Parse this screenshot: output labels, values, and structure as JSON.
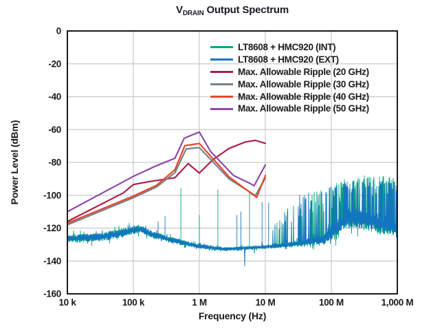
{
  "figure_title": {
    "prefix": "V",
    "subscript": "DRAIN",
    "rest": "Output Spectrum"
  },
  "chart_data": {
    "type": "line",
    "title": "V_DRAIN Output Spectrum",
    "xlabel": "Frequency (Hz)",
    "ylabel": "Power Level (dBm)",
    "x_scale": "log",
    "xlim_hz": [
      10000,
      1000000000
    ],
    "ylim": [
      -160,
      0
    ],
    "grid": true,
    "legend_position": "top-right",
    "axis_color": "#1a1a1a",
    "grid_color": "#c9c9c9",
    "title_color": "#1a1a24",
    "x_ticks": [
      {
        "log10": 4,
        "label": "10 k"
      },
      {
        "log10": 5,
        "label": "100 k"
      },
      {
        "log10": 6,
        "label": "1 M"
      },
      {
        "log10": 7,
        "label": "10 M"
      },
      {
        "log10": 8,
        "label": "100 M"
      },
      {
        "log10": 9,
        "label": "1,000 M"
      }
    ],
    "y_ticks": [
      {
        "value": 0,
        "label": "0"
      },
      {
        "value": -20,
        "label": "-20"
      },
      {
        "value": -40,
        "label": "-40"
      },
      {
        "value": -60,
        "label": "-60"
      },
      {
        "value": -80,
        "label": "-80"
      },
      {
        "value": -100,
        "label": "-100"
      },
      {
        "value": -120,
        "label": "-120"
      },
      {
        "value": -140,
        "label": "-140"
      },
      {
        "value": -160,
        "label": "-160"
      }
    ],
    "series": [
      {
        "name": "LT8608 + HMC920 (INT)",
        "color": "#00a87a",
        "kind": "noise",
        "seed": 7,
        "envelope": [
          [
            4.0,
            -126.5,
            2.8,
            null,
            0
          ],
          [
            4.6,
            -125.0,
            2.8,
            null,
            0
          ],
          [
            5.1,
            -120.3,
            2.6,
            null,
            0
          ],
          [
            5.3,
            -124.0,
            2.2,
            null,
            0
          ],
          [
            5.7,
            -128.5,
            1.8,
            null,
            0
          ],
          [
            6.0,
            -131.0,
            1.5,
            null,
            0
          ],
          [
            6.4,
            -132.8,
            1.2,
            null,
            0
          ],
          [
            7.0,
            -131.5,
            1.2,
            -126,
            0.04
          ],
          [
            7.25,
            -130.5,
            1.5,
            -113,
            0.1
          ],
          [
            7.5,
            -129.5,
            2.0,
            -102,
            0.25
          ],
          [
            7.9,
            -127.0,
            3.0,
            -95,
            0.45
          ],
          [
            8.05,
            -122.0,
            5.0,
            -93,
            0.5
          ],
          [
            8.2,
            -115.5,
            5.5,
            -90,
            0.55
          ],
          [
            8.5,
            -114.5,
            6.5,
            -88,
            0.55
          ],
          [
            8.75,
            -118.0,
            6.0,
            -87,
            0.5
          ],
          [
            9.0,
            -120.0,
            5.0,
            -90,
            0.5
          ]
        ],
        "spurs_log10_dbm": [
          [
            5.72,
            -95.5
          ],
          [
            6.0,
            -112.0
          ],
          [
            6.28,
            -96.5
          ],
          [
            6.76,
            -97.5
          ]
        ]
      },
      {
        "name": "LT8608 + HMC920 (EXT)",
        "color": "#1375bf",
        "kind": "noise",
        "seed": 13,
        "envelope": [
          [
            4.0,
            -126.5,
            2.4,
            null,
            0
          ],
          [
            4.6,
            -125.0,
            2.4,
            null,
            0
          ],
          [
            5.1,
            -120.5,
            2.3,
            null,
            0
          ],
          [
            5.3,
            -124.0,
            2.0,
            null,
            0
          ],
          [
            5.7,
            -128.5,
            1.6,
            null,
            0
          ],
          [
            6.0,
            -131.0,
            1.4,
            null,
            0
          ],
          [
            6.4,
            -132.8,
            1.1,
            null,
            0
          ],
          [
            7.0,
            -131.5,
            1.1,
            -125,
            0.05
          ],
          [
            7.25,
            -130.5,
            1.4,
            -112,
            0.12
          ],
          [
            7.5,
            -129.0,
            2.0,
            -100,
            0.3
          ],
          [
            7.9,
            -126.5,
            3.0,
            -96,
            0.5
          ],
          [
            8.05,
            -121.0,
            5.0,
            -94,
            0.6
          ],
          [
            8.2,
            -114.5,
            6.0,
            -92,
            0.65
          ],
          [
            8.5,
            -113.5,
            6.5,
            -91,
            0.65
          ],
          [
            8.75,
            -117.0,
            6.0,
            -90,
            0.6
          ],
          [
            9.0,
            -119.5,
            5.0,
            -92,
            0.6
          ]
        ],
        "spurs_log10_dbm": [
          [
            5.375,
            -116.0
          ],
          [
            5.48,
            -112.7
          ],
          [
            6.57,
            -112.0
          ],
          [
            6.63,
            -110.0
          ],
          [
            6.95,
            -104.0
          ],
          [
            7.05,
            -104.5
          ],
          [
            7.34,
            -108.0
          ]
        ]
      },
      {
        "name": "Max. Allowable Ripple (20 GHz)",
        "color": "#aa2046",
        "kind": "line",
        "points_log10_dbm": [
          [
            4.0,
            -116.0
          ],
          [
            4.85,
            -98.5
          ],
          [
            5.0,
            -93.5
          ],
          [
            5.2,
            -92.0
          ],
          [
            5.63,
            -89.3
          ],
          [
            5.83,
            -80.7
          ],
          [
            6.0,
            -86.5
          ],
          [
            6.2,
            -78.5
          ],
          [
            6.45,
            -71.5
          ],
          [
            6.7,
            -67.5
          ],
          [
            6.85,
            -66.6
          ],
          [
            7.0,
            -68.4
          ]
        ]
      },
      {
        "name": "Max. Allowable Ripple (30 GHz)",
        "color": "#76818d",
        "kind": "line",
        "points_log10_dbm": [
          [
            4.0,
            -118.0
          ],
          [
            5.0,
            -101.5
          ],
          [
            5.35,
            -95.0
          ],
          [
            5.63,
            -86.3
          ],
          [
            5.8,
            -71.8
          ],
          [
            6.0,
            -71.0
          ],
          [
            6.45,
            -90.0
          ],
          [
            6.85,
            -100.2
          ],
          [
            7.0,
            -89.5
          ]
        ]
      },
      {
        "name": "Max. Allowable Ripple (40 GHz)",
        "color": "#e8472b",
        "kind": "line",
        "points_log10_dbm": [
          [
            4.0,
            -117.0
          ],
          [
            5.0,
            -100.5
          ],
          [
            5.35,
            -94.0
          ],
          [
            5.63,
            -84.5
          ],
          [
            5.78,
            -69.8
          ],
          [
            6.0,
            -68.5
          ],
          [
            6.45,
            -88.8
          ],
          [
            6.87,
            -101.3
          ],
          [
            7.0,
            -88.0
          ]
        ]
      },
      {
        "name": "Max. Allowable Ripple (50 GHz)",
        "color": "#8b49a9",
        "kind": "line",
        "points_log10_dbm": [
          [
            4.0,
            -110.0
          ],
          [
            5.0,
            -88.5
          ],
          [
            5.35,
            -82.0
          ],
          [
            5.63,
            -77.5
          ],
          [
            5.77,
            -65.3
          ],
          [
            6.0,
            -61.5
          ],
          [
            6.17,
            -73.3
          ],
          [
            6.52,
            -88.0
          ],
          [
            6.76,
            -92.6
          ],
          [
            6.83,
            -94.2
          ],
          [
            7.0,
            -81.5
          ]
        ]
      }
    ]
  }
}
